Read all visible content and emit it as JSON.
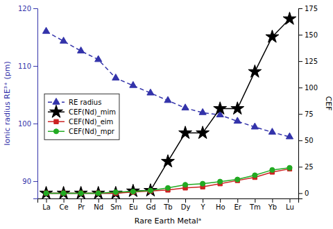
{
  "chart_data": {
    "type": "line",
    "xlabel": "Rare Earth Metalᵃ",
    "ylabel": "Ionic radius RE³⁺ (pm)",
    "y2label": "CEF",
    "categories": [
      "La",
      "Ce",
      "Pr",
      "Nd",
      "Sm",
      "Eu",
      "Gd",
      "Tb",
      "Dy",
      "Y",
      "Ho",
      "Er",
      "Tm",
      "Yb",
      "Lu"
    ],
    "series": [
      {
        "name": "RE radius",
        "color": "#3333aa",
        "marker": "triangle",
        "line_style": "dashed",
        "values": [
          116.0,
          114.3,
          112.6,
          111.1,
          107.9,
          106.6,
          105.3,
          104.0,
          102.7,
          101.9,
          101.5,
          100.4,
          99.4,
          98.5,
          97.7
        ]
      },
      {
        "name": "CEF(Nd)_mim",
        "color": "#000000",
        "marker": "star",
        "line_style": "solid",
        "axis": "y2",
        "values": [
          0.0,
          0.0,
          0.0,
          0.0,
          0.0,
          2.0,
          2.5,
          30.0,
          57.0,
          57.0,
          80.0,
          80.0,
          115.0,
          148.0,
          165.0
        ]
      },
      {
        "name": "CEF(Nd)_eim",
        "color": "#cc2222",
        "marker": "square",
        "line_style": "solid",
        "axis": "y2",
        "values": [
          0.0,
          0.0,
          0.0,
          0.0,
          0.0,
          1.0,
          2.0,
          3.0,
          5.0,
          6.0,
          9.0,
          12.0,
          15.0,
          20.0,
          23.0
        ]
      },
      {
        "name": "CEF(Nd)_mpr",
        "color": "#22aa22",
        "marker": "circle",
        "line_style": "solid",
        "axis": "y2",
        "values": [
          0.0,
          0.0,
          0.0,
          0.0,
          1.0,
          1.5,
          2.5,
          5.0,
          8.0,
          9.0,
          11.0,
          13.0,
          17.0,
          22.0,
          24.0
        ]
      }
    ],
    "ylim": [
      87,
      120
    ],
    "yticks": [
      90,
      100,
      110,
      120
    ],
    "y2lim": [
      -5,
      175
    ],
    "y2ticks": [
      0,
      25,
      50,
      75,
      100,
      125,
      150,
      175
    ],
    "grid": false,
    "legend": "center left"
  }
}
